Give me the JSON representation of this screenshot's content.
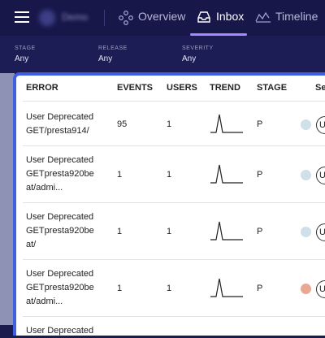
{
  "nav": {
    "user_name": "Demo",
    "items": [
      "Overview",
      "Inbox",
      "Timeline"
    ],
    "active": 1
  },
  "filters": [
    {
      "label": "STAGE",
      "value": "Any"
    },
    {
      "label": "RELEASE",
      "value": "Any"
    },
    {
      "label": "SEVERITY",
      "value": "Any"
    }
  ],
  "table": {
    "columns": [
      "ERROR",
      "EVENTS",
      "USERS",
      "TREND",
      "STAGE",
      "Se"
    ],
    "rows": [
      {
        "error": [
          "User Deprecated",
          "GET/presta914/"
        ],
        "events": "95",
        "users": "1",
        "stage": "P",
        "dot": "#cfe0e8",
        "badge": "U"
      },
      {
        "error": [
          "User Deprecated",
          "GETpresta920be",
          "at/admi..."
        ],
        "events": "1",
        "users": "1",
        "stage": "P",
        "dot": "#cfe0e8",
        "badge": "U"
      },
      {
        "error": [
          "User Deprecated",
          "GETpresta920be",
          "at/"
        ],
        "events": "1",
        "users": "1",
        "stage": "P",
        "dot": "#cfe0e8",
        "badge": "U"
      },
      {
        "error": [
          "User Deprecated",
          "GETpresta920be",
          "at/admi..."
        ],
        "events": "1",
        "users": "1",
        "stage": "P",
        "dot": "#e8a891",
        "badge": "U"
      },
      {
        "error": [
          "User Deprecated"
        ]
      }
    ]
  }
}
